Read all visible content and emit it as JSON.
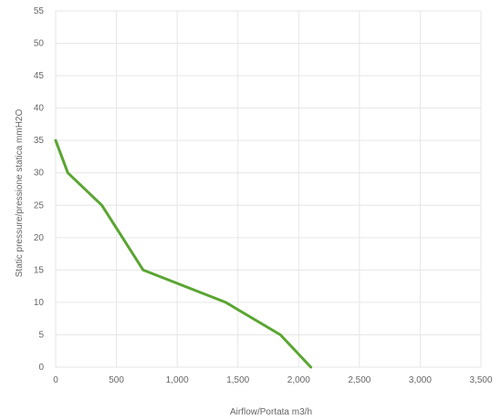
{
  "chart_data": {
    "type": "line",
    "title": "",
    "xlabel": "Airflow/Portata m3/h",
    "ylabel": "Static pressure/pressione statica mmH2O",
    "xlim": [
      0,
      3500
    ],
    "ylim": [
      0,
      55
    ],
    "x_ticks": [
      0,
      500,
      1000,
      1500,
      2000,
      2500,
      3000,
      3500
    ],
    "x_tick_labels": [
      "0",
      "500",
      "1,000",
      "1,500",
      "2,000",
      "2,500",
      "3,000",
      "3,500"
    ],
    "y_ticks": [
      0,
      5,
      10,
      15,
      20,
      25,
      30,
      35,
      40,
      45,
      50,
      55
    ],
    "y_tick_labels": [
      "0",
      "5",
      "10",
      "15",
      "20",
      "25",
      "30",
      "35",
      "40",
      "45",
      "50",
      "55"
    ],
    "grid": true,
    "legend": "none",
    "series": [
      {
        "color": "#5aa532",
        "x": [
          0,
          100,
          380,
          720,
          1400,
          1850,
          2100
        ],
        "y": [
          35,
          30,
          25,
          15,
          10,
          5,
          0
        ]
      }
    ]
  }
}
